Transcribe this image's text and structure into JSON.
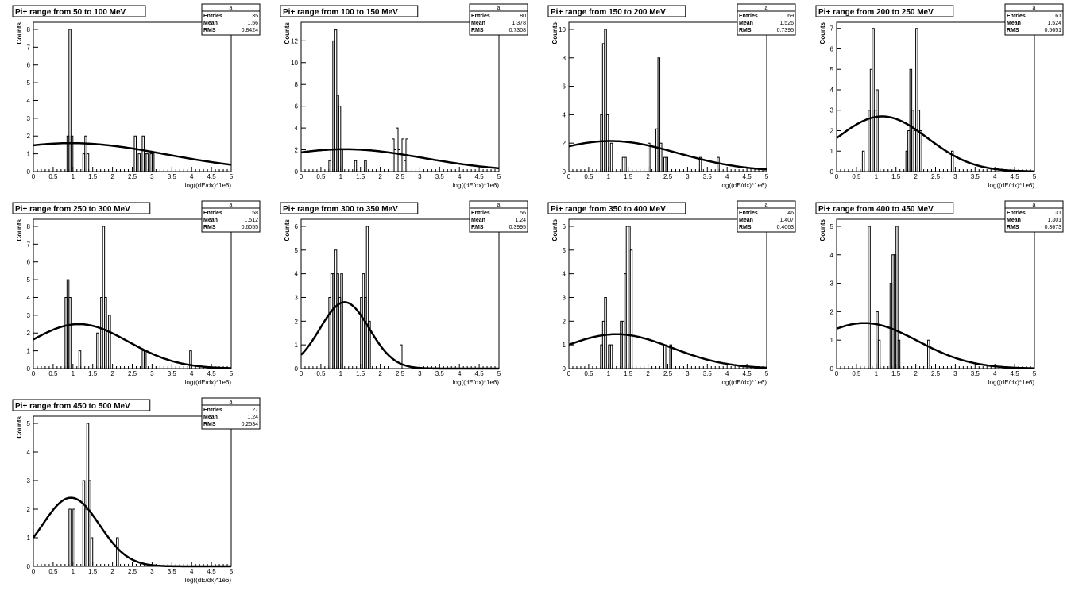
{
  "page": {
    "background": "#ffffff",
    "line_color": "#000000"
  },
  "chart_data": [
    {
      "type": "histogram",
      "title": "Pi+ range from 50 to 100 MeV",
      "xlabel": "log((dE/dx)*1e6)",
      "ylabel": "Counts",
      "xlim": [
        0,
        5
      ],
      "ylim": [
        0,
        8.4
      ],
      "xticks": [
        "0",
        "0.5",
        "1",
        "1.5",
        "2",
        "2.5",
        "3",
        "3.5",
        "4",
        "4.5",
        "5"
      ],
      "yticks": [
        0,
        1,
        2,
        3,
        4,
        5,
        6,
        7,
        8
      ],
      "stats": {
        "name": "a",
        "rows": [
          [
            "Entries",
            "35"
          ],
          [
            "Mean",
            "1.56"
          ],
          [
            "RMS",
            "0.8424"
          ]
        ]
      },
      "bin_width": 0.05,
      "bins": [
        [
          0.85,
          2
        ],
        [
          0.9,
          8
        ],
        [
          0.95,
          2
        ],
        [
          1.25,
          1
        ],
        [
          1.3,
          2
        ],
        [
          1.35,
          1
        ],
        [
          2.55,
          2
        ],
        [
          2.65,
          1
        ],
        [
          2.75,
          2
        ],
        [
          2.8,
          1
        ],
        [
          2.85,
          1
        ],
        [
          2.95,
          1
        ],
        [
          3.0,
          1
        ]
      ],
      "fit": {
        "type": "gaussian",
        "amplitude": 1.6,
        "mean": 0.95,
        "sigma": 2.4
      }
    },
    {
      "type": "histogram",
      "title": "Pi+ range from 100 to 150 MeV",
      "xlabel": "log((dE/dx)*1e6)",
      "ylabel": "Counts",
      "xlim": [
        0,
        5
      ],
      "ylim": [
        0,
        13.7
      ],
      "xticks": [
        "0",
        "0.5",
        "1",
        "1.5",
        "2",
        "2.5",
        "3",
        "3.5",
        "4",
        "4.5",
        "5"
      ],
      "yticks": [
        0,
        2,
        4,
        6,
        8,
        10,
        12
      ],
      "stats": {
        "name": "a",
        "rows": [
          [
            "Entries",
            "80"
          ],
          [
            "Mean",
            "1.378"
          ],
          [
            "RMS",
            "0.7308"
          ]
        ]
      },
      "bin_width": 0.05,
      "bins": [
        [
          0.7,
          1
        ],
        [
          0.75,
          2
        ],
        [
          0.8,
          12
        ],
        [
          0.85,
          13
        ],
        [
          0.9,
          7
        ],
        [
          0.95,
          6
        ],
        [
          1.0,
          2
        ],
        [
          1.35,
          1
        ],
        [
          1.6,
          1
        ],
        [
          2.3,
          3
        ],
        [
          2.35,
          2
        ],
        [
          2.4,
          4
        ],
        [
          2.45,
          2
        ],
        [
          2.55,
          3
        ],
        [
          2.6,
          1
        ],
        [
          2.65,
          3
        ]
      ],
      "fit": {
        "type": "gaussian",
        "amplitude": 2.05,
        "mean": 1.1,
        "sigma": 2.0
      }
    },
    {
      "type": "histogram",
      "title": "Pi+ range from 150 to 200 MeV",
      "xlabel": "log((dE/dx)*1e6)",
      "ylabel": "Counts",
      "xlim": [
        0,
        5
      ],
      "ylim": [
        0,
        10.5
      ],
      "xticks": [
        "0",
        "0.5",
        "1",
        "1.5",
        "2",
        "2.5",
        "3",
        "3.5",
        "4",
        "4.5",
        "5"
      ],
      "yticks": [
        0,
        2,
        4,
        6,
        8,
        10
      ],
      "stats": {
        "name": "a",
        "rows": [
          [
            "Entries",
            "69"
          ],
          [
            "Mean",
            "1.526"
          ],
          [
            "RMS",
            "0.7395"
          ]
        ]
      },
      "bin_width": 0.05,
      "bins": [
        [
          0.8,
          4
        ],
        [
          0.85,
          9
        ],
        [
          0.9,
          10
        ],
        [
          0.95,
          4
        ],
        [
          1.05,
          2
        ],
        [
          1.35,
          1
        ],
        [
          1.4,
          1
        ],
        [
          2.0,
          2
        ],
        [
          2.2,
          3
        ],
        [
          2.25,
          8
        ],
        [
          2.3,
          2
        ],
        [
          2.4,
          1
        ],
        [
          2.45,
          1
        ],
        [
          3.3,
          1
        ],
        [
          3.75,
          1
        ]
      ],
      "fit": {
        "type": "gaussian",
        "amplitude": 2.15,
        "mean": 1.05,
        "sigma": 1.7
      }
    },
    {
      "type": "histogram",
      "title": "Pi+ range from 200 to 250 MeV",
      "xlabel": "log((dE/dx)*1e6)",
      "ylabel": "Counts",
      "xlim": [
        0,
        5
      ],
      "ylim": [
        0,
        7.3
      ],
      "xticks": [
        "0",
        "0.5",
        "1",
        "1.5",
        "2",
        "2.5",
        "3",
        "3.5",
        "4",
        "4.5",
        "5"
      ],
      "yticks": [
        0,
        1,
        2,
        3,
        4,
        5,
        6,
        7
      ],
      "stats": {
        "name": "a",
        "rows": [
          [
            "Entries",
            "61"
          ],
          [
            "Mean",
            "1.524"
          ],
          [
            "RMS",
            "0.5651"
          ]
        ]
      },
      "bin_width": 0.05,
      "bins": [
        [
          0.65,
          1
        ],
        [
          0.8,
          3
        ],
        [
          0.85,
          5
        ],
        [
          0.9,
          7
        ],
        [
          0.95,
          3
        ],
        [
          1.0,
          4
        ],
        [
          1.75,
          1
        ],
        [
          1.8,
          2
        ],
        [
          1.85,
          5
        ],
        [
          1.9,
          3
        ],
        [
          1.95,
          2
        ],
        [
          2.0,
          7
        ],
        [
          2.05,
          3
        ],
        [
          2.1,
          2
        ],
        [
          2.9,
          1
        ]
      ],
      "fit": {
        "type": "gaussian",
        "amplitude": 2.7,
        "mean": 1.15,
        "sigma": 1.15
      }
    },
    {
      "type": "histogram",
      "title": "Pi+ range from 250 to 300 MeV",
      "xlabel": "log((dE/dx)*1e6)",
      "ylabel": "Counts",
      "xlim": [
        0,
        5
      ],
      "ylim": [
        0,
        8.4
      ],
      "xticks": [
        "0",
        "0.5",
        "1",
        "1.5",
        "2",
        "2.5",
        "3",
        "3.5",
        "4",
        "4.5",
        "5"
      ],
      "yticks": [
        0,
        1,
        2,
        3,
        4,
        5,
        6,
        7,
        8
      ],
      "stats": {
        "name": "a",
        "rows": [
          [
            "Entries",
            "58"
          ],
          [
            "Mean",
            "1.512"
          ],
          [
            "RMS",
            "0.6055"
          ]
        ]
      },
      "bin_width": 0.05,
      "bins": [
        [
          0.8,
          4
        ],
        [
          0.85,
          5
        ],
        [
          0.9,
          4
        ],
        [
          1.15,
          1
        ],
        [
          1.6,
          2
        ],
        [
          1.7,
          4
        ],
        [
          1.75,
          8
        ],
        [
          1.8,
          4
        ],
        [
          1.9,
          3
        ],
        [
          2.75,
          1
        ],
        [
          2.8,
          1
        ],
        [
          3.95,
          1
        ]
      ],
      "fit": {
        "type": "gaussian",
        "amplitude": 2.5,
        "mean": 1.15,
        "sigma": 1.25
      }
    },
    {
      "type": "histogram",
      "title": "Pi+ range from 300 to 350 MeV",
      "xlabel": "log((dE/dx)*1e6)",
      "ylabel": "Counts",
      "xlim": [
        0,
        5
      ],
      "ylim": [
        0,
        6.3
      ],
      "xticks": [
        "0",
        "0.5",
        "1",
        "1.5",
        "2",
        "2.5",
        "3",
        "3.5",
        "4",
        "4.5",
        "5"
      ],
      "yticks": [
        0,
        1,
        2,
        3,
        4,
        5,
        6
      ],
      "stats": {
        "name": "a",
        "rows": [
          [
            "Entries",
            "56"
          ],
          [
            "Mean",
            "1.24"
          ],
          [
            "RMS",
            "0.3995"
          ]
        ]
      },
      "bin_width": 0.05,
      "bins": [
        [
          0.7,
          3
        ],
        [
          0.75,
          4
        ],
        [
          0.8,
          4
        ],
        [
          0.85,
          5
        ],
        [
          0.9,
          4
        ],
        [
          0.95,
          3
        ],
        [
          1.0,
          4
        ],
        [
          1.5,
          3
        ],
        [
          1.55,
          4
        ],
        [
          1.6,
          3
        ],
        [
          1.65,
          6
        ],
        [
          1.7,
          2
        ],
        [
          2.5,
          1
        ]
      ],
      "fit": {
        "type": "gaussian",
        "amplitude": 2.8,
        "mean": 1.1,
        "sigma": 0.62
      }
    },
    {
      "type": "histogram",
      "title": "Pi+ range from 350 to 400 MeV",
      "xlabel": "log((dE/dx)*1e6)",
      "ylabel": "Counts",
      "xlim": [
        0,
        5
      ],
      "ylim": [
        0,
        6.3
      ],
      "xticks": [
        "0",
        "0.5",
        "1",
        "1.5",
        "2",
        "2.5",
        "3",
        "3.5",
        "4",
        "4.5",
        "5"
      ],
      "yticks": [
        0,
        1,
        2,
        3,
        4,
        5,
        6
      ],
      "stats": {
        "name": "a",
        "rows": [
          [
            "Entries",
            "46"
          ],
          [
            "Mean",
            "1.407"
          ],
          [
            "RMS",
            "0.4063"
          ]
        ]
      },
      "bin_width": 0.05,
      "bins": [
        [
          0.8,
          1
        ],
        [
          0.85,
          2
        ],
        [
          0.9,
          3
        ],
        [
          1.0,
          1
        ],
        [
          1.05,
          1
        ],
        [
          1.3,
          2
        ],
        [
          1.35,
          2
        ],
        [
          1.4,
          4
        ],
        [
          1.45,
          6
        ],
        [
          1.5,
          6
        ],
        [
          1.55,
          5
        ],
        [
          2.4,
          1
        ],
        [
          2.55,
          1
        ]
      ],
      "fit": {
        "type": "gaussian",
        "amplitude": 1.45,
        "mean": 1.2,
        "sigma": 1.4
      }
    },
    {
      "type": "histogram",
      "title": "Pi+ range from 400 to 450 MeV",
      "xlabel": "log((dE/dx)*1e6)",
      "ylabel": "Counts",
      "xlim": [
        0,
        5
      ],
      "ylim": [
        0,
        5.25
      ],
      "xticks": [
        "0",
        "0.5",
        "1",
        "1.5",
        "2",
        "2.5",
        "3",
        "3.5",
        "4",
        "4.5",
        "5"
      ],
      "yticks": [
        0,
        1,
        2,
        3,
        4,
        5
      ],
      "stats": {
        "name": "a",
        "rows": [
          [
            "Entries",
            "31"
          ],
          [
            "Mean",
            "1.301"
          ],
          [
            "RMS",
            "0.3673"
          ]
        ]
      },
      "bin_width": 0.05,
      "bins": [
        [
          0.8,
          5
        ],
        [
          1.0,
          2
        ],
        [
          1.05,
          1
        ],
        [
          1.35,
          3
        ],
        [
          1.4,
          4
        ],
        [
          1.45,
          4
        ],
        [
          1.5,
          5
        ],
        [
          1.55,
          1
        ],
        [
          2.3,
          1
        ]
      ],
      "fit": {
        "type": "gaussian",
        "amplitude": 1.6,
        "mean": 0.7,
        "sigma": 1.35
      }
    },
    {
      "type": "histogram",
      "title": "Pi+ range from 450 to 500 MeV",
      "xlabel": "log((dE/dx)*1e6)",
      "ylabel": "Counts",
      "xlim": [
        0,
        5
      ],
      "ylim": [
        0,
        5.25
      ],
      "xticks": [
        "0",
        "0.5",
        "1",
        "1.5",
        "2",
        "2.5",
        "3",
        "3.5",
        "4",
        "4.5",
        "5"
      ],
      "yticks": [
        0,
        1,
        2,
        3,
        4,
        5
      ],
      "stats": {
        "name": "a",
        "rows": [
          [
            "Entries",
            "27"
          ],
          [
            "Mean",
            "1.24"
          ],
          [
            "RMS",
            "0.2534"
          ]
        ]
      },
      "bin_width": 0.05,
      "bins": [
        [
          0.9,
          2
        ],
        [
          1.0,
          2
        ],
        [
          1.25,
          3
        ],
        [
          1.3,
          2
        ],
        [
          1.35,
          5
        ],
        [
          1.4,
          3
        ],
        [
          1.45,
          1
        ],
        [
          2.1,
          1
        ]
      ],
      "fit": {
        "type": "gaussian",
        "amplitude": 2.4,
        "mean": 0.95,
        "sigma": 0.72
      }
    }
  ]
}
